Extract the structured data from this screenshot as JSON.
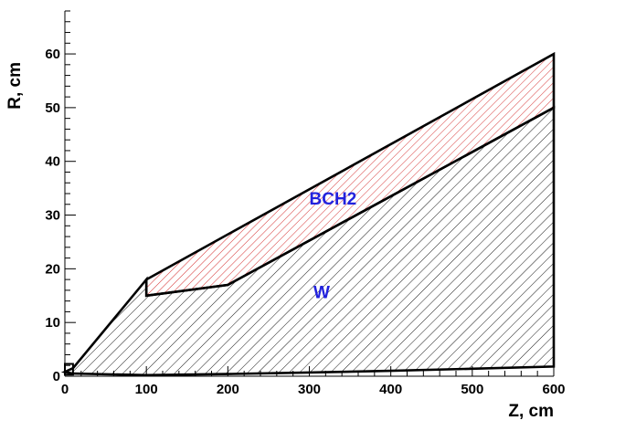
{
  "chart_data": {
    "type": "area",
    "xlabel": "Z, cm",
    "ylabel": "R, cm",
    "xlim": [
      0,
      600
    ],
    "ylim": [
      0,
      68
    ],
    "xticks": [
      0,
      100,
      200,
      300,
      400,
      500,
      600
    ],
    "yticks": [
      0,
      10,
      20,
      30,
      40,
      50,
      60
    ],
    "grid": false,
    "series": [
      {
        "name": "W",
        "color": "#000000",
        "hatch": "diagonal",
        "points": [
          [
            0,
            0.8
          ],
          [
            10,
            0.5
          ],
          [
            100,
            0.2
          ],
          [
            200,
            0.4
          ],
          [
            300,
            0.7
          ],
          [
            400,
            1.0
          ],
          [
            500,
            1.4
          ],
          [
            600,
            1.8
          ],
          [
            600,
            50
          ],
          [
            200,
            17
          ],
          [
            100,
            15
          ],
          [
            100,
            18
          ],
          [
            10,
            1.5
          ],
          [
            0,
            0.8
          ]
        ]
      },
      {
        "name": "BCH2",
        "color": "#cc0000",
        "hatch": "diagonal",
        "points": [
          [
            100,
            15
          ],
          [
            200,
            17
          ],
          [
            600,
            50
          ],
          [
            600,
            60
          ],
          [
            100,
            18
          ]
        ]
      }
    ],
    "beam_plug": {
      "points": [
        [
          0,
          2.3
        ],
        [
          10,
          2.3
        ],
        [
          10,
          0.3
        ],
        [
          0,
          0.3
        ]
      ]
    },
    "annotations": [
      {
        "text": "BCH2",
        "x": 300,
        "y": 32,
        "color": "#2222dd"
      },
      {
        "text": "W",
        "x": 305,
        "y": 14.5,
        "color": "#2222dd"
      }
    ]
  }
}
